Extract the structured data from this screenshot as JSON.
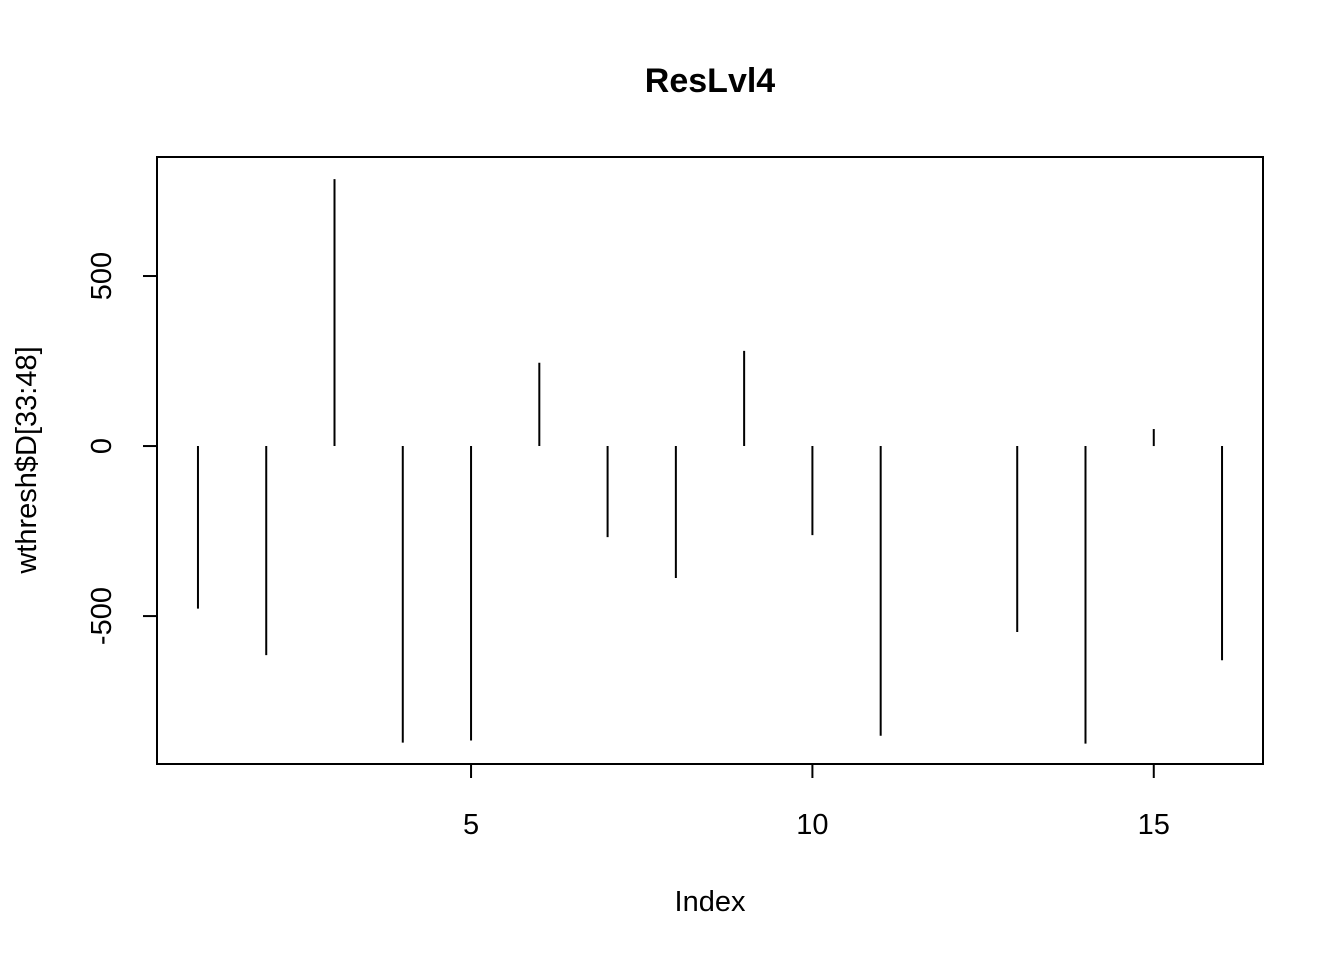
{
  "chart_data": {
    "type": "bar",
    "style": "histogram-type vertical lines (R plot type='h')",
    "title": "ResLvl4",
    "xlabel": "Index",
    "ylabel": "wthresh$D[33:48]",
    "x": [
      1,
      2,
      3,
      4,
      5,
      6,
      7,
      8,
      9,
      10,
      11,
      12,
      13,
      14,
      15,
      16
    ],
    "values": [
      -478,
      -615,
      785,
      -872,
      -866,
      245,
      -268,
      -388,
      280,
      -262,
      -852,
      0,
      -547,
      -875,
      50,
      -630
    ],
    "xlim": [
      0.4,
      16.6
    ],
    "ylim": [
      -935,
      850
    ],
    "x_ticks": [
      5,
      10,
      15
    ],
    "x_tick_labels": [
      "5",
      "10",
      "15"
    ],
    "y_ticks": [
      -500,
      0,
      500
    ],
    "y_tick_labels": [
      "-500",
      "0",
      "500"
    ],
    "grid": false,
    "legend": "none",
    "line_color": "#000000"
  }
}
